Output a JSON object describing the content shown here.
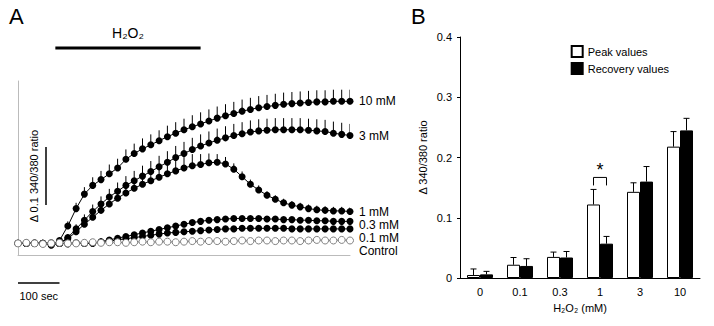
{
  "chart_data": [
    {
      "type": "line",
      "title": "A",
      "x": [
        0,
        20,
        40,
        60,
        80,
        100,
        120,
        140,
        160,
        180,
        200,
        220,
        240,
        260,
        280,
        300,
        320,
        340,
        360,
        380,
        400,
        420,
        440,
        460,
        480,
        500,
        520,
        540,
        560,
        580,
        600,
        620,
        640,
        660,
        680,
        700,
        720,
        740,
        760,
        780,
        800
      ],
      "xlim": [
        0,
        800
      ],
      "ylim": [
        -0.02,
        0.28
      ],
      "tick_labels": false,
      "grid": false,
      "series": [
        {
          "name": "10 mM",
          "color": "#000000",
          "marker": "circle",
          "values": [
            0,
            0,
            0,
            0,
            -0.003,
            0.005,
            0.03,
            0.06,
            0.085,
            0.1,
            0.11,
            0.12,
            0.13,
            0.145,
            0.155,
            0.163,
            0.17,
            0.177,
            0.184,
            0.19,
            0.196,
            0.201,
            0.206,
            0.211,
            0.216,
            0.22,
            0.224,
            0.228,
            0.231,
            0.234,
            0.236,
            0.238,
            0.24,
            0.241,
            0.242,
            0.243,
            0.244,
            0.244,
            0.245,
            0.245,
            0.245
          ],
          "errors": [
            0.003,
            0.003,
            0.003,
            0.003,
            0.003,
            0.005,
            0.008,
            0.01,
            0.012,
            0.014,
            0.015,
            0.016,
            0.016,
            0.017,
            0.017,
            0.018,
            0.018,
            0.018,
            0.019,
            0.019,
            0.019,
            0.02,
            0.02,
            0.02,
            0.02,
            0.02,
            0.02,
            0.02,
            0.02,
            0.02,
            0.02,
            0.02,
            0.02,
            0.02,
            0.02,
            0.02,
            0.02,
            0.02,
            0.02,
            0.02,
            0.02
          ]
        },
        {
          "name": "3 mM",
          "color": "#000000",
          "marker": "circle",
          "values": [
            0,
            0,
            0,
            0,
            -0.002,
            0,
            0.01,
            0.025,
            0.04,
            0.055,
            0.068,
            0.08,
            0.09,
            0.1,
            0.108,
            0.116,
            0.124,
            0.132,
            0.14,
            0.148,
            0.155,
            0.162,
            0.168,
            0.173,
            0.178,
            0.182,
            0.186,
            0.189,
            0.192,
            0.194,
            0.195,
            0.196,
            0.196,
            0.196,
            0.196,
            0.195,
            0.194,
            0.193,
            0.19,
            0.188,
            0.186
          ],
          "errors": [
            0.003,
            0.003,
            0.003,
            0.003,
            0.003,
            0.004,
            0.006,
            0.008,
            0.01,
            0.012,
            0.013,
            0.014,
            0.015,
            0.016,
            0.017,
            0.018,
            0.018,
            0.019,
            0.019,
            0.02,
            0.02,
            0.02,
            0.02,
            0.02,
            0.02,
            0.02,
            0.02,
            0.02,
            0.02,
            0.02,
            0.02,
            0.02,
            0.02,
            0.02,
            0.02,
            0.02,
            0.02,
            0.02,
            0.02,
            0.02,
            0.02
          ]
        },
        {
          "name": "1 mM",
          "color": "#000000",
          "marker": "circle",
          "values": [
            0,
            0,
            0,
            0,
            -0.002,
            0,
            0.008,
            0.02,
            0.033,
            0.045,
            0.057,
            0.068,
            0.078,
            0.087,
            0.095,
            0.102,
            0.108,
            0.114,
            0.12,
            0.125,
            0.13,
            0.134,
            0.136,
            0.139,
            0.14,
            0.137,
            0.128,
            0.115,
            0.102,
            0.092,
            0.083,
            0.076,
            0.07,
            0.066,
            0.063,
            0.06,
            0.058,
            0.057,
            0.056,
            0.056,
            0.055
          ],
          "errors": [
            0.003,
            0.003,
            0.003,
            0.003,
            0.003,
            0.004,
            0.006,
            0.008,
            0.01,
            0.012,
            0.013,
            0.014,
            0.015,
            0.016,
            0.017,
            0.018,
            0.018,
            0.019,
            0.019,
            0.02,
            0.02,
            0.02,
            0.018,
            0.016,
            0.014,
            0.012,
            0.01,
            0.009,
            0.008,
            0.008,
            0.007,
            0.007,
            0.007,
            0.007,
            0.007,
            0.007,
            0.007,
            0.007,
            0.007,
            0.007,
            0.007
          ]
        },
        {
          "name": "0.3 mM",
          "color": "#000000",
          "marker": "circle",
          "values": [
            0,
            0,
            0.001,
            0,
            -0.001,
            0,
            0,
            0.001,
            0,
            0,
            0.003,
            0.006,
            0.009,
            0.012,
            0.015,
            0.018,
            0.021,
            0.024,
            0.027,
            0.03,
            0.033,
            0.036,
            0.038,
            0.04,
            0.041,
            0.042,
            0.043,
            0.043,
            0.043,
            0.043,
            0.042,
            0.042,
            0.041,
            0.041,
            0.04,
            0.04,
            0.039,
            0.039,
            0.038,
            0.038,
            0.038
          ],
          "errors": [
            0.004,
            0.004,
            0.004,
            0.004,
            0.004,
            0.004,
            0.004,
            0.004,
            0.004,
            0.004,
            0.004,
            0.004,
            0.004,
            0.004,
            0.004,
            0.004,
            0.004,
            0.004,
            0.004,
            0.004,
            0.004,
            0.004,
            0.004,
            0.004,
            0.004,
            0.004,
            0.004,
            0.004,
            0.004,
            0.004,
            0.004,
            0.004,
            0.004,
            0.004,
            0.004,
            0.004,
            0.004,
            0.004,
            0.004,
            0.004,
            0.004
          ]
        },
        {
          "name": "0.1 mM",
          "color": "#000000",
          "marker": "circle",
          "values": [
            0,
            0.001,
            0,
            0,
            0.001,
            0,
            -0.001,
            0,
            0,
            0.001,
            0.002,
            0.004,
            0.006,
            0.008,
            0.01,
            0.012,
            0.014,
            0.016,
            0.018,
            0.019,
            0.02,
            0.021,
            0.022,
            0.023,
            0.024,
            0.025,
            0.025,
            0.026,
            0.026,
            0.026,
            0.026,
            0.026,
            0.026,
            0.025,
            0.025,
            0.025,
            0.025,
            0.025,
            0.025,
            0.025,
            0.025
          ],
          "errors": [
            0.004,
            0.004,
            0.004,
            0.004,
            0.004,
            0.004,
            0.004,
            0.004,
            0.004,
            0.004,
            0.004,
            0.004,
            0.004,
            0.004,
            0.004,
            0.004,
            0.004,
            0.004,
            0.004,
            0.004,
            0.004,
            0.004,
            0.004,
            0.004,
            0.004,
            0.004,
            0.004,
            0.004,
            0.004,
            0.004,
            0.004,
            0.004,
            0.004,
            0.004,
            0.004,
            0.004,
            0.004,
            0.004,
            0.004,
            0.004,
            0.004
          ]
        },
        {
          "name": "Control",
          "color": "#808080",
          "marker": "open_circle",
          "values": [
            0,
            0.001,
            0,
            -0.001,
            0,
            0.001,
            0,
            0,
            0.001,
            0.002,
            0.001,
            0.002,
            0.002,
            0.001,
            0.002,
            0.003,
            0.002,
            0.003,
            0.003,
            0.002,
            0.003,
            0.004,
            0.003,
            0.004,
            0.004,
            0.003,
            0.004,
            0.005,
            0.004,
            0.005,
            0.005,
            0.004,
            0.005,
            0.005,
            0.004,
            0.005,
            0.006,
            0.005,
            0.005,
            0.006,
            0.005
          ],
          "errors": [
            0.003,
            0.003,
            0.003,
            0.003,
            0.003,
            0.003,
            0.003,
            0.003,
            0.003,
            0.003,
            0.003,
            0.003,
            0.003,
            0.003,
            0.003,
            0.003,
            0.003,
            0.003,
            0.003,
            0.003,
            0.003,
            0.003,
            0.003,
            0.003,
            0.003,
            0.003,
            0.003,
            0.003,
            0.003,
            0.003,
            0.003,
            0.003,
            0.003,
            0.003,
            0.003,
            0.003,
            0.003,
            0.003,
            0.003,
            0.003,
            0.003
          ]
        }
      ],
      "annotations": [
        {
          "text": "H₂O₂",
          "start": 90,
          "end": 440
        }
      ],
      "scale_bars": [
        {
          "axis": "y",
          "value": 0.1,
          "label": "Δ 0.1 340/380 ratio"
        },
        {
          "axis": "x",
          "value": 100,
          "label": "100 sec"
        }
      ]
    },
    {
      "type": "bar",
      "title": "B",
      "categories": [
        "0",
        "0.1",
        "0.3",
        "1",
        "3",
        "10"
      ],
      "xlabel": "H₂O₂ (mM)",
      "ylabel": "Δ 340/380 ratio",
      "ylim": [
        0,
        0.4
      ],
      "yticks": [
        0,
        0.1,
        0.2,
        0.3,
        0.4
      ],
      "legend": "upper right",
      "grid": false,
      "series": [
        {
          "name": "Peak values",
          "color": "#ffffff",
          "values": [
            0.005,
            0.022,
            0.035,
            0.122,
            0.143,
            0.218
          ],
          "errors": [
            0.01,
            0.012,
            0.008,
            0.025,
            0.015,
            0.025
          ]
        },
        {
          "name": "Recovery values",
          "color": "#000000",
          "values": [
            0.006,
            0.02,
            0.034,
            0.057,
            0.16,
            0.245
          ],
          "errors": [
            0.005,
            0.012,
            0.01,
            0.012,
            0.025,
            0.02
          ]
        }
      ],
      "annotations": [
        {
          "text": "*",
          "category": "1"
        }
      ]
    }
  ]
}
